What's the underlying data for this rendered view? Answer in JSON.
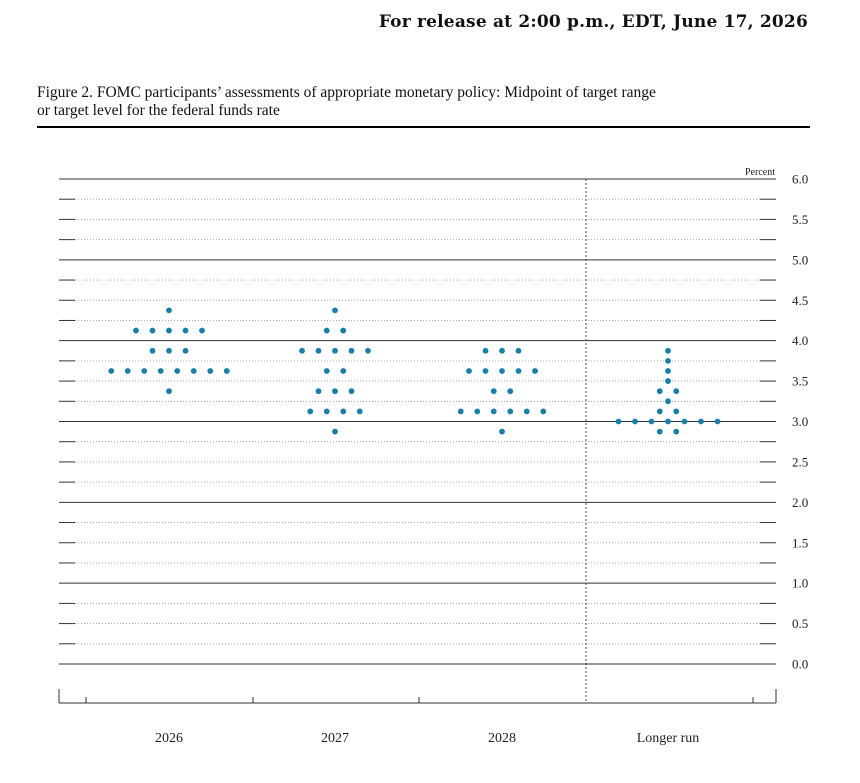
{
  "header": {
    "release": "For release at 2:00 p.m., EDT, June 17, 2026"
  },
  "figure": {
    "caption_line1": "Figure 2. FOMC participants’ assessments of appropriate monetary policy: Midpoint of target range",
    "caption_line2": "or target level for the federal funds rate"
  },
  "chart_data": {
    "type": "scatter",
    "unit_label": "Percent",
    "ylim": [
      0.0,
      6.0
    ],
    "ytick_labels": [
      "0.0",
      "0.5",
      "1.0",
      "1.5",
      "2.0",
      "2.5",
      "3.0",
      "3.5",
      "4.0",
      "4.5",
      "5.0",
      "5.5",
      "6.0"
    ],
    "categories": [
      "2026",
      "2027",
      "2028",
      "Longer run"
    ],
    "dot_color": "#1a7fa6",
    "grid": true,
    "dots": [
      {
        "category": "2026",
        "rows": [
          {
            "rate": 4.375,
            "count": 1
          },
          {
            "rate": 4.125,
            "count": 5
          },
          {
            "rate": 3.875,
            "count": 3
          },
          {
            "rate": 3.625,
            "count": 8
          },
          {
            "rate": 3.375,
            "count": 1
          }
        ]
      },
      {
        "category": "2027",
        "rows": [
          {
            "rate": 4.375,
            "count": 1
          },
          {
            "rate": 4.125,
            "count": 2
          },
          {
            "rate": 3.875,
            "count": 5
          },
          {
            "rate": 3.625,
            "count": 2
          },
          {
            "rate": 3.375,
            "count": 3
          },
          {
            "rate": 3.125,
            "count": 4
          },
          {
            "rate": 2.875,
            "count": 1
          }
        ]
      },
      {
        "category": "2028",
        "rows": [
          {
            "rate": 3.875,
            "count": 3
          },
          {
            "rate": 3.625,
            "count": 5
          },
          {
            "rate": 3.375,
            "count": 2
          },
          {
            "rate": 3.125,
            "count": 6
          },
          {
            "rate": 2.875,
            "count": 1
          }
        ]
      },
      {
        "category": "Longer run",
        "rows": [
          {
            "rate": 3.875,
            "count": 1
          },
          {
            "rate": 3.75,
            "count": 1
          },
          {
            "rate": 3.625,
            "count": 1
          },
          {
            "rate": 3.5,
            "count": 1
          },
          {
            "rate": 3.375,
            "count": 2
          },
          {
            "rate": 3.25,
            "count": 1
          },
          {
            "rate": 3.125,
            "count": 2
          },
          {
            "rate": 3.0,
            "count": 7
          },
          {
            "rate": 2.875,
            "count": 2
          }
        ]
      }
    ]
  }
}
